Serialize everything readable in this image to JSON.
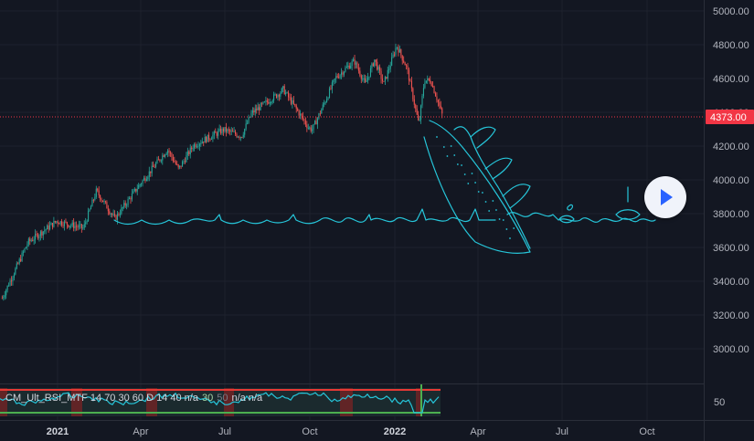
{
  "chart_data": {
    "type": "candlestick",
    "y_axis": {
      "ticks": [
        3000,
        3200,
        3400,
        3600,
        3800,
        4000,
        4200,
        4400,
        4600,
        4800,
        5000
      ],
      "tick_labels": [
        "3000.00",
        "3200.00",
        "3400.00",
        "3600.00",
        "3800.00",
        "4000.00",
        "4200.00",
        "4400.00",
        "4600.00",
        "4800.00",
        "5000.00"
      ],
      "range": [
        2800,
        5050
      ]
    },
    "x_axis": {
      "labels": [
        {
          "text": "2021",
          "bold": true
        },
        {
          "text": "Apr",
          "bold": false
        },
        {
          "text": "Jul",
          "bold": false
        },
        {
          "text": "Oct",
          "bold": false
        },
        {
          "text": "2022",
          "bold": true
        },
        {
          "text": "Apr",
          "bold": false
        },
        {
          "text": "Jul",
          "bold": false
        },
        {
          "text": "Oct",
          "bold": false
        }
      ]
    },
    "current_price": 4373,
    "current_price_label": "4373.00",
    "price_path": [
      [
        "2020-11-02",
        3300
      ],
      [
        "2020-11-30",
        3630
      ],
      [
        "2020-12-31",
        3756
      ],
      [
        "2021-01-29",
        3714
      ],
      [
        "2021-02-12",
        3934
      ],
      [
        "2021-03-04",
        3770
      ],
      [
        "2021-03-31",
        3973
      ],
      [
        "2021-04-30",
        4181
      ],
      [
        "2021-05-12",
        4063
      ],
      [
        "2021-05-28",
        4204
      ],
      [
        "2021-06-30",
        4297
      ],
      [
        "2021-07-19",
        4258
      ],
      [
        "2021-07-30",
        4395
      ],
      [
        "2021-08-31",
        4522
      ],
      [
        "2021-09-02",
        4537
      ],
      [
        "2021-09-30",
        4307
      ],
      [
        "2021-10-04",
        4300
      ],
      [
        "2021-10-29",
        4605
      ],
      [
        "2021-11-18",
        4704
      ],
      [
        "2021-11-30",
        4567
      ],
      [
        "2021-12-10",
        4712
      ],
      [
        "2021-12-20",
        4568
      ],
      [
        "2022-01-03",
        4796
      ],
      [
        "2022-01-14",
        4663
      ],
      [
        "2022-01-27",
        4326
      ],
      [
        "2022-02-02",
        4589
      ],
      [
        "2022-02-09",
        4587
      ],
      [
        "2022-02-16",
        4475
      ],
      [
        "2022-02-22",
        4373
      ]
    ],
    "indicator": {
      "label": "CM_Ult_RSI_MTF 14 70 30 60 D 14  40  n/a",
      "value_30": "30",
      "value_50": "50",
      "tail": "n/a  n/a",
      "axis_value_label": "50",
      "upper_band_color": "#e53935",
      "lower_band_color": "#4caf50",
      "line_color": "#26c6da"
    },
    "colors": {
      "background": "#131722",
      "up_candle": "#26a69a",
      "down_candle": "#ef5350",
      "price_line": "#f23645",
      "drawing": "#26c6da"
    }
  },
  "controls": {
    "play_button": "play-icon"
  }
}
